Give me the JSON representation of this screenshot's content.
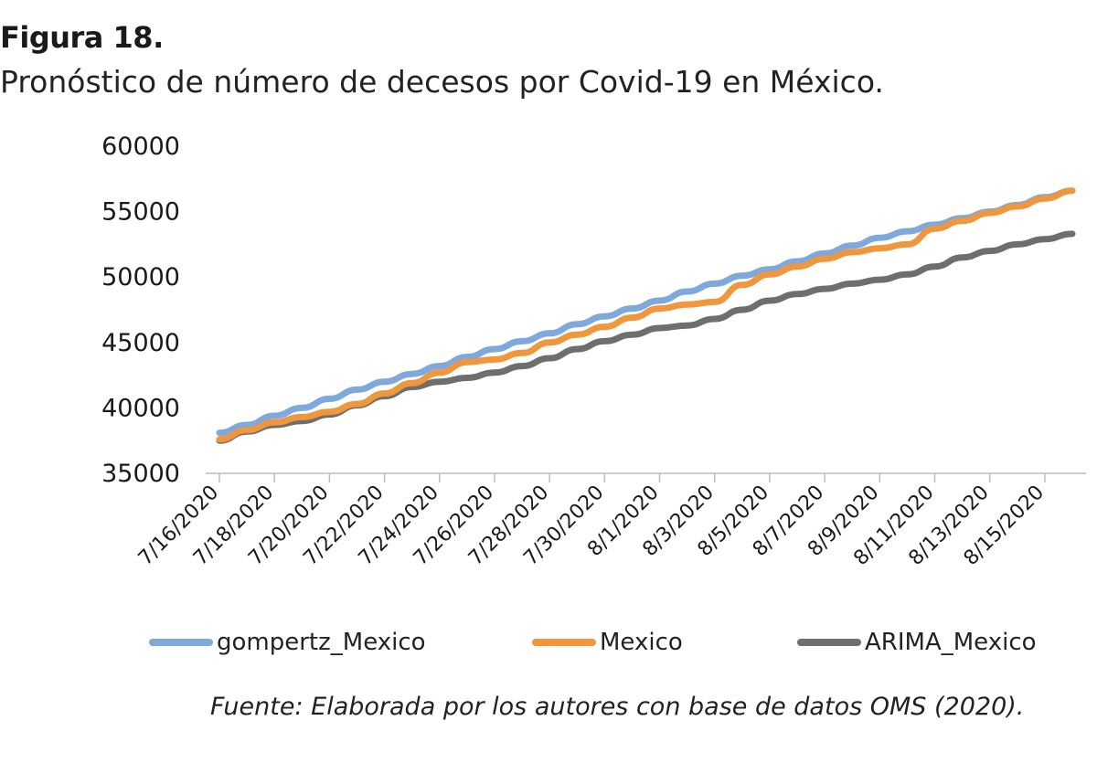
{
  "figure": {
    "label": "Figura 18.",
    "title": "Pronóstico de número de decesos por Covid-19 en México.",
    "source": "Fuente: Elaborada por los autores con base de datos OMS (2020)."
  },
  "chart_data": {
    "type": "line",
    "title": "",
    "xlabel": "",
    "ylabel": "",
    "ylim": [
      35000,
      60000
    ],
    "yticks": [
      35000,
      40000,
      45000,
      50000,
      55000,
      60000
    ],
    "grid": false,
    "legend_position": "bottom",
    "x": [
      "7/16/2020",
      "7/17/2020",
      "7/18/2020",
      "7/19/2020",
      "7/20/2020",
      "7/21/2020",
      "7/22/2020",
      "7/23/2020",
      "7/24/2020",
      "7/25/2020",
      "7/26/2020",
      "7/27/2020",
      "7/28/2020",
      "7/29/2020",
      "7/30/2020",
      "7/31/2020",
      "8/1/2020",
      "8/2/2020",
      "8/3/2020",
      "8/4/2020",
      "8/5/2020",
      "8/6/2020",
      "8/7/2020",
      "8/8/2020",
      "8/9/2020",
      "8/10/2020",
      "8/11/2020",
      "8/12/2020",
      "8/13/2020",
      "8/14/2020",
      "8/15/2020",
      "8/16/2020"
    ],
    "x_tick_labels": [
      "7/16/2020",
      "7/18/2020",
      "7/20/2020",
      "7/22/2020",
      "7/24/2020",
      "7/26/2020",
      "7/28/2020",
      "7/30/2020",
      "8/1/2020",
      "8/3/2020",
      "8/5/2020",
      "8/7/2020",
      "8/9/2020",
      "8/11/2020",
      "8/13/2020",
      "8/15/2020"
    ],
    "series": [
      {
        "name": "gompertz_Mexico",
        "color": "#7fa8dc",
        "values": [
          38100,
          38700,
          39400,
          40000,
          40700,
          41400,
          42000,
          42600,
          43200,
          43900,
          44500,
          45100,
          45700,
          46400,
          47000,
          47600,
          48200,
          48900,
          49500,
          50100,
          50600,
          51200,
          51800,
          52400,
          53000,
          53500,
          54000,
          54500,
          55000,
          55500,
          56100,
          56600
        ]
      },
      {
        "name": "Mexico",
        "color": "#f0963c",
        "values": [
          37600,
          38300,
          38900,
          39300,
          39700,
          40300,
          41100,
          41900,
          42700,
          43500,
          43700,
          44200,
          45000,
          45600,
          46200,
          46900,
          47600,
          47900,
          48100,
          49400,
          50200,
          50800,
          51400,
          51900,
          52200,
          52500,
          53700,
          54300,
          54900,
          55400,
          56000,
          56600
        ]
      },
      {
        "name": "ARIMA_Mexico",
        "color": "#6e6e6e",
        "values": [
          37500,
          38200,
          38700,
          39000,
          39500,
          40200,
          40900,
          41600,
          42000,
          42300,
          42700,
          43200,
          43800,
          44500,
          45100,
          45600,
          46100,
          46300,
          46800,
          47500,
          48200,
          48700,
          49100,
          49500,
          49800,
          50200,
          50800,
          51500,
          52000,
          52500,
          52900,
          53300
        ]
      }
    ]
  }
}
